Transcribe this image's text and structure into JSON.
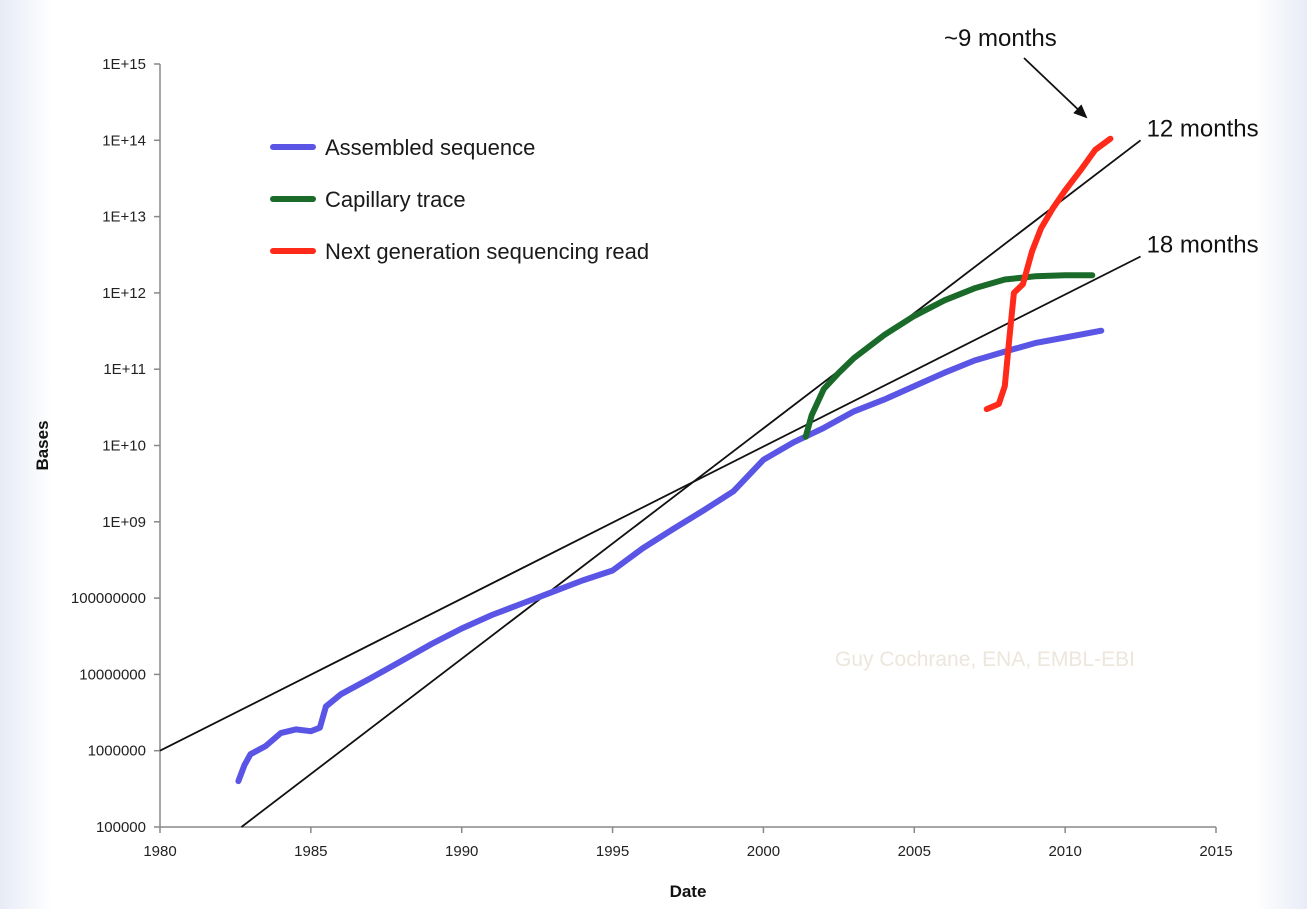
{
  "chart_data": {
    "type": "line",
    "title": "",
    "xlabel": "Date",
    "ylabel": "Bases",
    "xlim": [
      1980,
      2015
    ],
    "ylim": [
      100000,
      1000000000000000
    ],
    "yscale": "log",
    "grid": false,
    "legend_position": "top-left",
    "x_ticks": [
      "1980",
      "1985",
      "1990",
      "1995",
      "2000",
      "2005",
      "2010",
      "2015"
    ],
    "y_ticks": [
      "100000",
      "1000000",
      "10000000",
      "100000000",
      "1E+09",
      "1E+10",
      "1E+11",
      "1E+12",
      "1E+13",
      "1E+14",
      "1E+15"
    ],
    "series": [
      {
        "name": "Assembled sequence",
        "color": "#5b55e6",
        "points": [
          [
            1982.6,
            400000
          ],
          [
            1982.8,
            650000
          ],
          [
            1983.0,
            900000
          ],
          [
            1983.5,
            1150000
          ],
          [
            1984.0,
            1700000
          ],
          [
            1984.5,
            1900000
          ],
          [
            1985.0,
            1800000
          ],
          [
            1985.3,
            2000000
          ],
          [
            1985.5,
            3800000
          ],
          [
            1986.0,
            5500000
          ],
          [
            1987.0,
            9000000
          ],
          [
            1988.0,
            15000000
          ],
          [
            1989.0,
            25000000
          ],
          [
            1990.0,
            40000000
          ],
          [
            1991.0,
            60000000
          ],
          [
            1992.0,
            85000000
          ],
          [
            1993.0,
            120000000
          ],
          [
            1994.0,
            170000000
          ],
          [
            1995.0,
            230000000
          ],
          [
            1996.0,
            450000000
          ],
          [
            1997.0,
            800000000
          ],
          [
            1998.0,
            1400000000
          ],
          [
            1999.0,
            2500000000
          ],
          [
            2000.0,
            6500000000
          ],
          [
            2001.0,
            11000000000
          ],
          [
            2002.0,
            17000000000
          ],
          [
            2003.0,
            28000000000
          ],
          [
            2004.0,
            40000000000
          ],
          [
            2005.0,
            60000000000
          ],
          [
            2006.0,
            90000000000
          ],
          [
            2007.0,
            130000000000
          ],
          [
            2008.0,
            170000000000
          ],
          [
            2009.0,
            220000000000
          ],
          [
            2010.0,
            260000000000
          ],
          [
            2011.2,
            320000000000
          ]
        ]
      },
      {
        "name": "Capillary trace",
        "color": "#1a6a2a",
        "points": [
          [
            2001.4,
            13000000000
          ],
          [
            2001.6,
            25000000000
          ],
          [
            2002.0,
            55000000000
          ],
          [
            2002.5,
            90000000000
          ],
          [
            2003.0,
            140000000000
          ],
          [
            2004.0,
            280000000000
          ],
          [
            2005.0,
            500000000000
          ],
          [
            2006.0,
            800000000000
          ],
          [
            2007.0,
            1150000000000
          ],
          [
            2008.0,
            1500000000000
          ],
          [
            2009.0,
            1650000000000
          ],
          [
            2010.0,
            1700000000000
          ],
          [
            2010.9,
            1700000000000
          ]
        ]
      },
      {
        "name": "Next generation sequencing read",
        "color": "#ff2a1a",
        "points": [
          [
            2007.4,
            30000000000
          ],
          [
            2007.8,
            35000000000
          ],
          [
            2008.0,
            60000000000
          ],
          [
            2008.15,
            250000000000
          ],
          [
            2008.3,
            1000000000000
          ],
          [
            2008.6,
            1300000000000
          ],
          [
            2008.9,
            3500000000000
          ],
          [
            2009.2,
            7000000000000
          ],
          [
            2009.6,
            13000000000000
          ],
          [
            2010.0,
            22000000000000
          ],
          [
            2010.5,
            40000000000000
          ],
          [
            2011.0,
            75000000000000
          ],
          [
            2011.5,
            105000000000000
          ]
        ]
      }
    ],
    "trend_lines": [
      {
        "label": "12 months",
        "color": "#111111",
        "from": [
          1982.7,
          100000
        ],
        "to": [
          2012.5,
          100000000000000
        ]
      },
      {
        "label": "18 months",
        "color": "#111111",
        "from": [
          1980.0,
          1000000
        ],
        "to": [
          2012.5,
          3000000000000
        ]
      }
    ],
    "annotations": [
      {
        "text": "~9 months",
        "arrow_to_series": "Next generation sequencing read"
      }
    ]
  },
  "watermark": "Guy Cochrane, ENA, EMBL-EBI"
}
